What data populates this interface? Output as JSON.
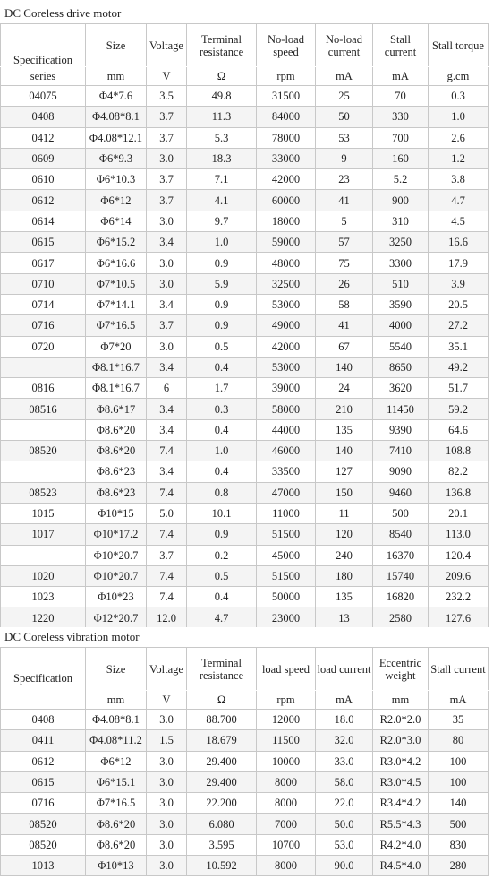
{
  "section1": {
    "title": "DC Coreless drive motor",
    "headers": [
      {
        "top": "Specification",
        "bottom": "series"
      },
      {
        "top": "Size",
        "bottom": "mm"
      },
      {
        "top": "Voltage",
        "bottom": "V"
      },
      {
        "top": "Terminal resistance",
        "bottom": "Ω"
      },
      {
        "top": "No-load speed",
        "bottom": "rpm"
      },
      {
        "top": "No-load current",
        "bottom": "mA"
      },
      {
        "top": "Stall current",
        "bottom": "mA"
      },
      {
        "top": "Stall torque",
        "bottom": "g.cm"
      }
    ],
    "rows": [
      {
        "series": "04075",
        "size": "Φ4*7.6",
        "voltage": "3.5",
        "resistance": "49.8",
        "speed": "31500",
        "current": "25",
        "stall_current": "70",
        "stall_torque": "0.3"
      },
      {
        "series": "0408",
        "size": "Φ4.08*8.1",
        "voltage": "3.7",
        "resistance": "11.3",
        "speed": "84000",
        "current": "50",
        "stall_current": "330",
        "stall_torque": "1.0"
      },
      {
        "series": "0412",
        "size": "Φ4.08*12.1",
        "voltage": "3.7",
        "resistance": "5.3",
        "speed": "78000",
        "current": "53",
        "stall_current": "700",
        "stall_torque": "2.6"
      },
      {
        "series": "0609",
        "size": "Φ6*9.3",
        "voltage": "3.0",
        "resistance": "18.3",
        "speed": "33000",
        "current": "9",
        "stall_current": "160",
        "stall_torque": "1.2"
      },
      {
        "series": "0610",
        "size": "Φ6*10.3",
        "voltage": "3.7",
        "resistance": "7.1",
        "speed": "42000",
        "current": "23",
        "stall_current": "5.2",
        "stall_torque": "3.8"
      },
      {
        "series": "0612",
        "size": "Φ6*12",
        "voltage": "3.7",
        "resistance": "4.1",
        "speed": "60000",
        "current": "41",
        "stall_current": "900",
        "stall_torque": "4.7"
      },
      {
        "series": "0614",
        "size": "Φ6*14",
        "voltage": "3.0",
        "resistance": "9.7",
        "speed": "18000",
        "current": "5",
        "stall_current": "310",
        "stall_torque": "4.5"
      },
      {
        "series": "0615",
        "size": "Φ6*15.2",
        "voltage": "3.4",
        "resistance": "1.0",
        "speed": "59000",
        "current": "57",
        "stall_current": "3250",
        "stall_torque": "16.6"
      },
      {
        "series": "0617",
        "size": "Φ6*16.6",
        "voltage": "3.0",
        "resistance": "0.9",
        "speed": "48000",
        "current": "75",
        "stall_current": "3300",
        "stall_torque": "17.9"
      },
      {
        "series": "0710",
        "size": "Φ7*10.5",
        "voltage": "3.0",
        "resistance": "5.9",
        "speed": "32500",
        "current": "26",
        "stall_current": "510",
        "stall_torque": "3.9"
      },
      {
        "series": "0714",
        "size": "Φ7*14.1",
        "voltage": "3.4",
        "resistance": "0.9",
        "speed": "53000",
        "current": "58",
        "stall_current": "3590",
        "stall_torque": "20.5"
      },
      {
        "series": "0716",
        "size": "Φ7*16.5",
        "voltage": "3.7",
        "resistance": "0.9",
        "speed": "49000",
        "current": "41",
        "stall_current": "4000",
        "stall_torque": "27.2"
      },
      {
        "series": "0720",
        "size": "Φ7*20",
        "voltage": "3.0",
        "resistance": "0.5",
        "speed": "42000",
        "current": "67",
        "stall_current": "5540",
        "stall_torque": "35.1"
      },
      {
        "series": "",
        "size": "Φ8.1*16.7",
        "voltage": "3.4",
        "resistance": "0.4",
        "speed": "53000",
        "current": "140",
        "stall_current": "8650",
        "stall_torque": "49.2"
      },
      {
        "series": "0816",
        "size": "Φ8.1*16.7",
        "voltage": "6",
        "resistance": "1.7",
        "speed": "39000",
        "current": "24",
        "stall_current": "3620",
        "stall_torque": "51.7"
      },
      {
        "series": "08516",
        "size": "Φ8.6*17",
        "voltage": "3.4",
        "resistance": "0.3",
        "speed": "58000",
        "current": "210",
        "stall_current": "11450",
        "stall_torque": "59.2"
      },
      {
        "series": "",
        "size": "Φ8.6*20",
        "voltage": "3.4",
        "resistance": "0.4",
        "speed": "44000",
        "current": "135",
        "stall_current": "9390",
        "stall_torque": "64.6"
      },
      {
        "series": "08520",
        "size": "Φ8.6*20",
        "voltage": "7.4",
        "resistance": "1.0",
        "speed": "46000",
        "current": "140",
        "stall_current": "7410",
        "stall_torque": "108.8"
      },
      {
        "series": "",
        "size": "Φ8.6*23",
        "voltage": "3.4",
        "resistance": "0.4",
        "speed": "33500",
        "current": "127",
        "stall_current": "9090",
        "stall_torque": "82.2"
      },
      {
        "series": "08523",
        "size": "Φ8.6*23",
        "voltage": "7.4",
        "resistance": "0.8",
        "speed": "47000",
        "current": "150",
        "stall_current": "9460",
        "stall_torque": "136.8"
      },
      {
        "series": "1015",
        "size": "Φ10*15",
        "voltage": "5.0",
        "resistance": "10.1",
        "speed": "11000",
        "current": "11",
        "stall_current": "500",
        "stall_torque": "20.1"
      },
      {
        "series": "1017",
        "size": "Φ10*17.2",
        "voltage": "7.4",
        "resistance": "0.9",
        "speed": "51500",
        "current": "120",
        "stall_current": "8540",
        "stall_torque": "113.0"
      },
      {
        "series": "",
        "size": "Φ10*20.7",
        "voltage": "3.7",
        "resistance": "0.2",
        "speed": "45000",
        "current": "240",
        "stall_current": "16370",
        "stall_torque": "120.4"
      },
      {
        "series": "1020",
        "size": "Φ10*20.7",
        "voltage": "7.4",
        "resistance": "0.5",
        "speed": "51500",
        "current": "180",
        "stall_current": "15740",
        "stall_torque": "209.6"
      },
      {
        "series": "1023",
        "size": "Φ10*23",
        "voltage": "7.4",
        "resistance": "0.4",
        "speed": "50000",
        "current": "135",
        "stall_current": "16820",
        "stall_torque": "232.2"
      },
      {
        "series": "1220",
        "size": "Φ12*20.7",
        "voltage": "12.0",
        "resistance": "4.7",
        "speed": "23000",
        "current": "13",
        "stall_current": "2580",
        "stall_torque": "127.6"
      }
    ]
  },
  "section2": {
    "title": "DC Coreless vibration motor",
    "headers": [
      {
        "top": "Specification",
        "bottom": ""
      },
      {
        "top": "Size",
        "bottom": "mm"
      },
      {
        "top": "Voltage",
        "bottom": "V"
      },
      {
        "top": "Terminal resistance",
        "bottom": "Ω"
      },
      {
        "top": "load speed",
        "bottom": "rpm"
      },
      {
        "top": "load current",
        "bottom": "mA"
      },
      {
        "top": "Eccentric weight",
        "bottom": "mm"
      },
      {
        "top": "Stall current",
        "bottom": "mA"
      }
    ],
    "rows": [
      {
        "series": "0408",
        "size": "Φ4.08*8.1",
        "voltage": "3.0",
        "resistance": "88.700",
        "speed": "12000",
        "current": "18.0",
        "weight": "R2.0*2.0",
        "stall_current": "35"
      },
      {
        "series": "0411",
        "size": "Φ4.08*11.2",
        "voltage": "1.5",
        "resistance": "18.679",
        "speed": "11500",
        "current": "32.0",
        "weight": "R2.0*3.0",
        "stall_current": "80"
      },
      {
        "series": "0612",
        "size": "Φ6*12",
        "voltage": "3.0",
        "resistance": "29.400",
        "speed": "10000",
        "current": "33.0",
        "weight": "R3.0*4.2",
        "stall_current": "100"
      },
      {
        "series": "0615",
        "size": "Φ6*15.1",
        "voltage": "3.0",
        "resistance": "29.400",
        "speed": "8000",
        "current": "58.0",
        "weight": "R3.0*4.5",
        "stall_current": "100"
      },
      {
        "series": "0716",
        "size": "Φ7*16.5",
        "voltage": "3.0",
        "resistance": "22.200",
        "speed": "8000",
        "current": "22.0",
        "weight": "R3.4*4.2",
        "stall_current": "140"
      },
      {
        "series": "08520",
        "size": "Φ8.6*20",
        "voltage": "3.0",
        "resistance": "6.080",
        "speed": "7000",
        "current": "50.0",
        "weight": "R5.5*4.3",
        "stall_current": "500"
      },
      {
        "series": "08520",
        "size": "Φ8.6*20",
        "voltage": "3.0",
        "resistance": "3.595",
        "speed": "10700",
        "current": "53.0",
        "weight": "R4.2*4.0",
        "stall_current": "830"
      },
      {
        "series": "1013",
        "size": "Φ10*13",
        "voltage": "3.0",
        "resistance": "10.592",
        "speed": "8000",
        "current": "90.0",
        "weight": "R4.5*4.0",
        "stall_current": "280"
      }
    ]
  }
}
